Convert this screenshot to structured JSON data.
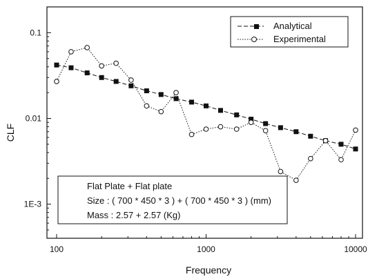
{
  "chart_data": {
    "type": "line",
    "title": "",
    "xlabel": "Frequency",
    "ylabel": "CLF",
    "xscale": "log",
    "yscale": "log",
    "xlim": [
      100,
      10000
    ],
    "ylim": [
      0.0004,
      0.2
    ],
    "xticks": [
      {
        "value": 100,
        "label": "100"
      },
      {
        "value": 1000,
        "label": "1000"
      },
      {
        "value": 10000,
        "label": "10000"
      }
    ],
    "yticks": [
      {
        "value": 0.1,
        "label": "0.1"
      },
      {
        "value": 0.01,
        "label": "0.01"
      },
      {
        "value": 0.001,
        "label": "1E-3"
      }
    ],
    "grid": false,
    "legend_position": "top-right",
    "series": [
      {
        "name": "Analytical",
        "marker": "filled-square",
        "line": "dashed",
        "color": "#111111",
        "x": [
          100,
          125,
          160,
          200,
          250,
          315,
          400,
          500,
          630,
          800,
          1000,
          1250,
          1600,
          2000,
          2500,
          3150,
          4000,
          5000,
          6300,
          8000,
          10000
        ],
        "y": [
          0.042,
          0.039,
          0.034,
          0.03,
          0.027,
          0.024,
          0.021,
          0.019,
          0.017,
          0.0155,
          0.014,
          0.0124,
          0.011,
          0.0098,
          0.0087,
          0.0078,
          0.007,
          0.0062,
          0.0055,
          0.005,
          0.0044
        ]
      },
      {
        "name": "Experimental",
        "marker": "open-circle",
        "line": "dotted",
        "color": "#111111",
        "x": [
          100,
          125,
          160,
          200,
          250,
          315,
          400,
          500,
          630,
          800,
          1000,
          1250,
          1600,
          2000,
          2500,
          3150,
          4000,
          5000,
          6300,
          8000,
          10000
        ],
        "y": [
          0.027,
          0.06,
          0.067,
          0.041,
          0.044,
          0.028,
          0.014,
          0.012,
          0.02,
          0.0065,
          0.0075,
          0.008,
          0.0075,
          0.009,
          0.0072,
          0.0024,
          0.0019,
          0.0034,
          0.0055,
          0.0033,
          0.0073
        ]
      }
    ],
    "annotations": [
      "Flat Plate + Flat plate",
      "Size : ( 700 * 450 * 3 )  + ( 700 * 450 * 3 ) (mm)",
      "Mass : 2.57 + 2.57 (Kg)"
    ]
  }
}
